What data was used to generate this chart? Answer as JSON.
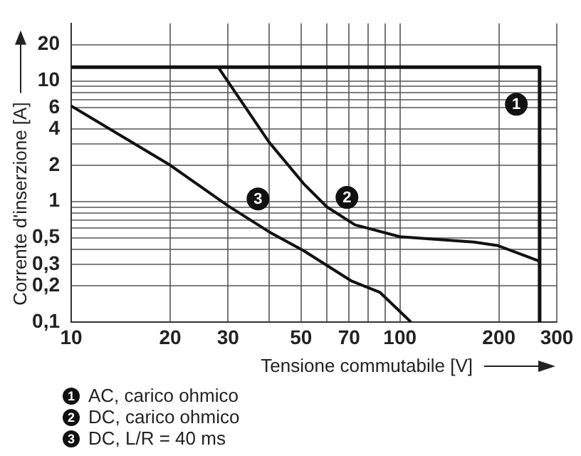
{
  "chart_data": {
    "type": "line",
    "xlabel": "Tensione commutabile [V]",
    "ylabel": "Corrente d'inserzione [A]",
    "log": "xy",
    "xlim": [
      10,
      300
    ],
    "ylim": [
      0.1,
      30
    ],
    "xticks": [
      10,
      20,
      30,
      {
        "value": 40,
        "label": null
      },
      50,
      {
        "value": 60,
        "label": null
      },
      70,
      {
        "value": 80,
        "label": null
      },
      {
        "value": 90,
        "label": null
      },
      100,
      200,
      300
    ],
    "yticks": [
      {
        "value": 0.1,
        "label": "0,1"
      },
      {
        "value": 0.2,
        "label": "0,2"
      },
      {
        "value": 0.3,
        "label": "0,3"
      },
      {
        "value": 0.4,
        "label": null
      },
      {
        "value": 0.5,
        "label": "0,5"
      },
      {
        "value": 0.6,
        "label": null
      },
      {
        "value": 0.7,
        "label": null
      },
      {
        "value": 0.8,
        "label": null
      },
      {
        "value": 0.9,
        "label": null
      },
      1,
      2,
      {
        "value": 3,
        "label": null
      },
      4,
      6,
      {
        "value": 7,
        "label": null
      },
      {
        "value": 8,
        "label": null
      },
      {
        "value": 9,
        "label": null
      },
      10,
      20
    ],
    "grid": true,
    "legend": "bottom",
    "marker": "none",
    "line_style": "solid",
    "series": [
      {
        "name": "AC, carico ohmico",
        "color": "#111111",
        "x": [
          10,
          266,
          266
        ],
        "values": [
          13,
          13,
          0.1
        ]
      },
      {
        "name": "DC, carico ohmico",
        "color": "#111111",
        "x": [
          28,
          40,
          51,
          60,
          73,
          100,
          168,
          199,
          266
        ],
        "values": [
          13,
          3.1,
          1.4,
          0.9,
          0.64,
          0.51,
          0.46,
          0.43,
          0.32
        ]
      },
      {
        "name": "DC, L/R = 40 ms",
        "color": "#111111",
        "x": [
          10,
          20,
          30,
          40,
          51,
          71,
          87,
          108
        ],
        "values": [
          6.2,
          2.0,
          0.92,
          0.56,
          0.39,
          0.22,
          0.176,
          0.1
        ]
      }
    ],
    "annotations": [
      {
        "text": "1",
        "x": 226,
        "y": 6.4
      },
      {
        "text": "2",
        "x": 69,
        "y": 1.08
      },
      {
        "text": "3",
        "x": 37,
        "y": 1.05
      }
    ]
  }
}
